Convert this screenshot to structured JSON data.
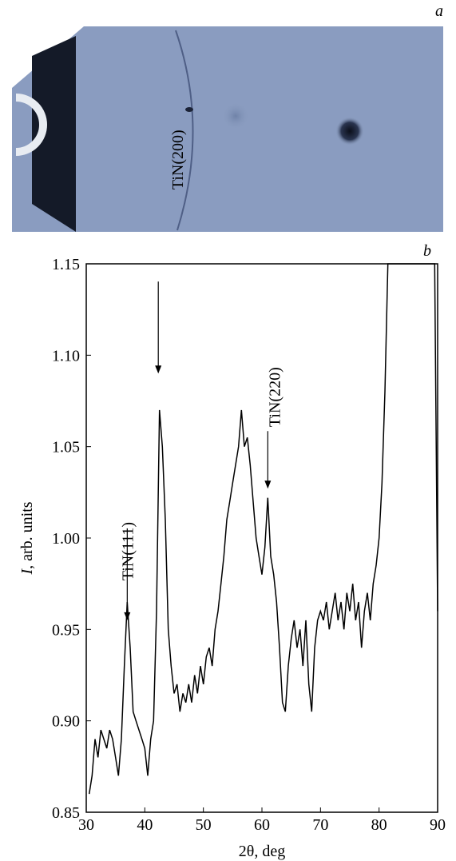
{
  "panel_labels": [
    "a",
    "b"
  ],
  "chart_data": {
    "type": "line",
    "xlabel": "2θ, deg",
    "ylabel_symbol": "I",
    "ylabel": ", arb. units",
    "x": [
      30.5,
      31,
      31.5,
      32,
      32.5,
      33,
      33.5,
      34,
      34.5,
      35,
      35.5,
      36,
      36.5,
      37,
      37.5,
      38,
      38.5,
      39,
      39.5,
      40,
      40.5,
      41,
      41.5,
      42,
      42.5,
      43,
      43.5,
      44,
      44.5,
      45,
      45.5,
      46,
      46.5,
      47,
      47.5,
      48,
      48.5,
      49,
      49.5,
      50,
      50.5,
      51,
      51.5,
      52,
      52.5,
      53,
      53.5,
      54,
      54.5,
      55,
      55.5,
      56,
      56.5,
      57,
      57.5,
      58,
      58.5,
      59,
      59.5,
      60,
      60.5,
      61,
      61.5,
      62,
      62.5,
      63,
      63.5,
      64,
      64.5,
      65,
      65.5,
      66,
      66.5,
      67,
      67.5,
      68,
      68.5,
      69,
      69.5,
      70,
      70.5,
      71,
      71.5,
      72,
      72.5,
      73,
      73.5,
      74,
      74.5,
      75,
      75.5,
      76,
      76.5,
      77,
      77.5,
      78,
      78.5,
      79,
      79.5,
      80,
      80.5,
      81,
      81.5,
      82,
      89.5,
      90
    ],
    "series": [
      {
        "color": "#000000",
        "values": [
          0.86,
          0.87,
          0.89,
          0.88,
          0.895,
          0.89,
          0.885,
          0.895,
          0.89,
          0.88,
          0.87,
          0.89,
          0.93,
          0.965,
          0.94,
          0.905,
          0.9,
          0.895,
          0.89,
          0.885,
          0.87,
          0.89,
          0.9,
          0.96,
          1.07,
          1.05,
          1.01,
          0.95,
          0.93,
          0.915,
          0.92,
          0.905,
          0.915,
          0.91,
          0.92,
          0.91,
          0.925,
          0.915,
          0.93,
          0.92,
          0.935,
          0.94,
          0.93,
          0.95,
          0.96,
          0.975,
          0.99,
          1.01,
          1.02,
          1.03,
          1.04,
          1.05,
          1.07,
          1.05,
          1.055,
          1.04,
          1.02,
          1.0,
          0.99,
          0.98,
          0.995,
          1.022,
          0.99,
          0.98,
          0.965,
          0.94,
          0.91,
          0.905,
          0.93,
          0.945,
          0.955,
          0.94,
          0.95,
          0.93,
          0.955,
          0.92,
          0.905,
          0.94,
          0.955,
          0.96,
          0.955,
          0.965,
          0.95,
          0.96,
          0.97,
          0.955,
          0.965,
          0.95,
          0.97,
          0.96,
          0.975,
          0.955,
          0.965,
          0.94,
          0.96,
          0.97,
          0.955,
          0.975,
          0.985,
          1.0,
          1.03,
          1.08,
          1.15,
          1.15,
          1.15,
          0.96
        ]
      }
    ],
    "xlim": [
      30,
      90
    ],
    "xticks": [
      30,
      40,
      50,
      60,
      70,
      80,
      90
    ],
    "ylim": [
      0.85,
      1.15
    ],
    "yticks": [
      0.85,
      {
        "value": 0.9,
        "label": "0.90"
      },
      0.95,
      {
        "value": 1.0,
        "label": "1.00"
      },
      1.05,
      {
        "value": 1.1,
        "label": "1.10"
      },
      1.15
    ],
    "annotations": [
      {
        "text": "TiN(111)",
        "x": 37,
        "y": 0.955
      },
      {
        "text": "TiN(200)",
        "x": 42.3,
        "y": 1.09
      },
      {
        "text": "TiN(220)",
        "x": 61,
        "y": 1.027
      }
    ]
  }
}
